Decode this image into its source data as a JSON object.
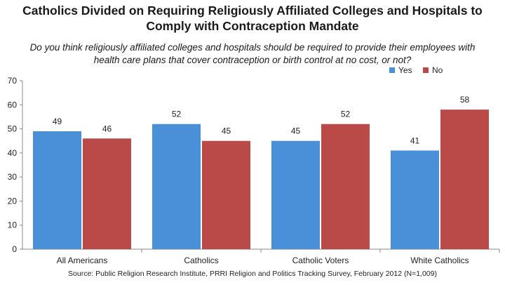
{
  "chart_data": {
    "type": "bar",
    "title_lines": [
      "Catholics Divided on Requiring Religiously Affiliated Colleges and Hospitals to",
      "Comply with Contraception Mandate"
    ],
    "subtitle_lines": [
      "Do you think religiously affiliated colleges and hospitals should be required to provide their employees with",
      "health care plans that cover contraception or birth control at no cost, or not?"
    ],
    "categories": [
      "All Americans",
      "Catholics",
      "Catholic Voters",
      "White Catholics"
    ],
    "series": [
      {
        "name": "Yes",
        "values": [
          49,
          52,
          45,
          41
        ],
        "color": "#4a90d9"
      },
      {
        "name": "No",
        "values": [
          46,
          45,
          52,
          58
        ],
        "color": "#b94a48"
      }
    ],
    "ylim": [
      0,
      70
    ],
    "yticks": [
      0,
      10,
      20,
      30,
      40,
      50,
      60,
      70
    ],
    "grid": false,
    "legend": "top-right",
    "source": "Source: Public Religion Research Institute, PRRI Religion and Politics Tracking Survey, February 2012 (N=1,009)"
  }
}
